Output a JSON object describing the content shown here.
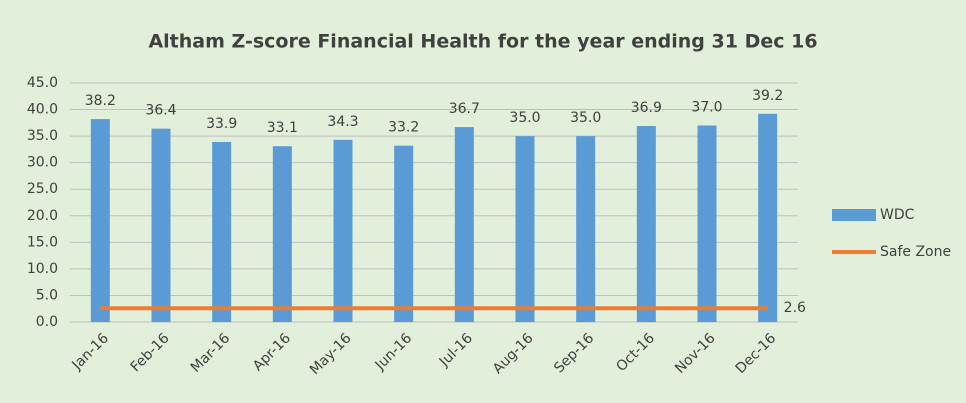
{
  "chart_data": {
    "type": "bar",
    "title": "Altham Z-score Financial Health for the year ending 31 Dec 16",
    "categories": [
      "Jan-16",
      "Feb-16",
      "Mar-16",
      "Apr-16",
      "May-16",
      "Jun-16",
      "Jul-16",
      "Aug-16",
      "Sep-16",
      "Oct-16",
      "Nov-16",
      "Dec-16"
    ],
    "series": [
      {
        "name": "WDC",
        "color": "#5b9bd5",
        "values": [
          38.2,
          36.4,
          33.9,
          33.1,
          34.3,
          33.2,
          36.7,
          35.0,
          35.0,
          36.9,
          37.0,
          39.2
        ],
        "value_labels": [
          "38.2",
          "36.4",
          "33.9",
          "33.1",
          "34.3",
          "33.2",
          "36.7",
          "35.0",
          "35.0",
          "36.9",
          "37.0",
          "39.2"
        ]
      },
      {
        "name": "Safe Zone",
        "type": "line",
        "color": "#ed7d31",
        "values": [
          2.6,
          2.6,
          2.6,
          2.6,
          2.6,
          2.6,
          2.6,
          2.6,
          2.6,
          2.6,
          2.6,
          2.6
        ],
        "labels": "last"
      }
    ],
    "ylim": [
      0,
      45
    ],
    "yticks": [
      {
        "value": 0,
        "label": "0.0"
      },
      {
        "value": 5,
        "label": "5.0"
      },
      {
        "value": 10,
        "label": "10.0"
      },
      {
        "value": 15,
        "label": "15.0"
      },
      {
        "value": 20,
        "label": "20.0"
      },
      {
        "value": 25,
        "label": "25.0"
      },
      {
        "value": 30,
        "label": "30.0"
      },
      {
        "value": 35,
        "label": "35.0"
      },
      {
        "value": 40,
        "label": "40.0"
      },
      {
        "value": 45,
        "label": "45.0"
      }
    ],
    "grid": true,
    "legend": "right"
  }
}
